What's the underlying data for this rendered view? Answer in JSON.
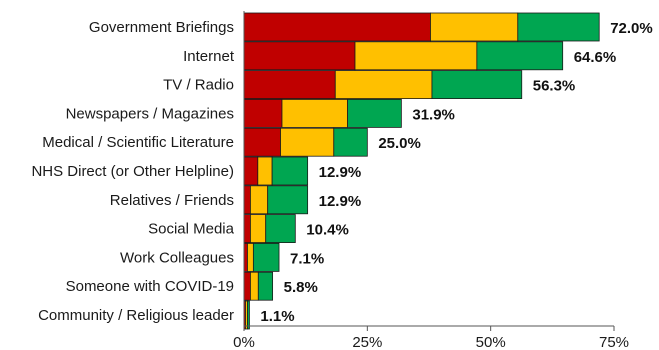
{
  "chart_data": {
    "type": "bar",
    "orientation": "horizontal",
    "stacked": true,
    "xlim": [
      0,
      75
    ],
    "x_ticks": [
      "0%",
      "25%",
      "50%",
      "75%"
    ],
    "x_tick_values": [
      0,
      25,
      50,
      75
    ],
    "categories": [
      "Government Briefings",
      "Internet",
      "TV / Radio",
      "Newspapers / Magazines",
      "Medical / Scientific Literature",
      "NHS Direct (or Other Helpline)",
      "Relatives / Friends",
      "Social Media",
      "Work Colleagues",
      "Someone with COVID-19",
      "Community / Religious leader"
    ],
    "series": [
      {
        "color": "#c00000",
        "values": [
          37.8,
          22.5,
          18.5,
          7.7,
          7.4,
          2.8,
          1.3,
          1.3,
          0.7,
          1.3,
          0.3
        ]
      },
      {
        "color": "#ffc000",
        "values": [
          17.7,
          24.7,
          19.6,
          13.3,
          10.8,
          2.9,
          3.5,
          3.1,
          1.2,
          1.6,
          0.4
        ]
      },
      {
        "color": "#00a651",
        "values": [
          16.5,
          17.4,
          18.2,
          10.9,
          6.8,
          7.2,
          8.1,
          6.0,
          5.2,
          2.9,
          0.4
        ]
      }
    ],
    "totals": [
      "72.0%",
      "64.6%",
      "56.3%",
      "31.9%",
      "25.0%",
      "12.9%",
      "12.9%",
      "10.4%",
      "7.1%",
      "5.8%",
      "1.1%"
    ],
    "grid": false,
    "legend": "none"
  }
}
